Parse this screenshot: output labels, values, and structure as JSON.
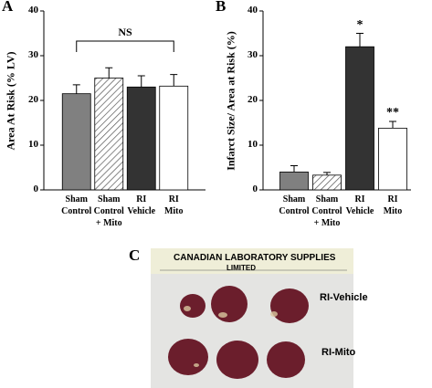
{
  "chart_data": [
    {
      "type": "bar",
      "panel": "A",
      "y_label": "Area At Risk (% LV)",
      "categories": [
        "Sham\nControl",
        "Sham\nControl\n+ Mito",
        "RI\nVehicle",
        "RI\nMito"
      ],
      "values": [
        21.5,
        25,
        23,
        23.2
      ],
      "errors": [
        2,
        2.3,
        2.5,
        2.6
      ],
      "colors": [
        "#808080",
        "#ffffff",
        "#333333",
        "#ffffff"
      ],
      "hatched": [
        false,
        true,
        false,
        false
      ],
      "annotation": "NS",
      "ylim": [
        0,
        40
      ],
      "yticks": [
        0,
        10,
        20,
        30,
        40
      ]
    },
    {
      "type": "bar",
      "panel": "B",
      "y_label": "Infarct Size/ Area at Risk  (%)",
      "categories": [
        "Sham\nControl",
        "Sham\nControl\n+ Mito",
        "RI\nVehicle",
        "RI\nMito"
      ],
      "values": [
        4,
        3.3,
        32,
        13.8
      ],
      "errors": [
        1.4,
        0.6,
        3,
        1.5
      ],
      "markers": [
        null,
        null,
        "*",
        "**"
      ],
      "colors": [
        "#808080",
        "#ffffff",
        "#333333",
        "#ffffff"
      ],
      "hatched": [
        false,
        true,
        false,
        false
      ],
      "ylim": [
        0,
        40
      ],
      "yticks": [
        0,
        10,
        20,
        30,
        40
      ]
    }
  ],
  "photo": {
    "panel": "C",
    "ruler_title": "CANADIAN LABORATORY SUPPLIES",
    "ruler_subtitle": "LIMITED",
    "row_labels": [
      "RI-Vehicle",
      "RI-Mito"
    ]
  }
}
